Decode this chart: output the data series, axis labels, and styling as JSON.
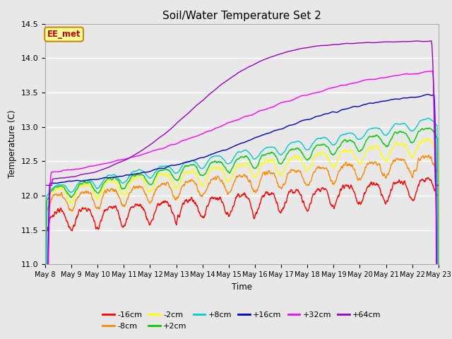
{
  "title": "Soil/Water Temperature Set 2",
  "xlabel": "Time",
  "ylabel": "Temperature (C)",
  "ylim": [
    11.0,
    14.5
  ],
  "n_days": 15,
  "x_tick_labels": [
    "May 8",
    "May 9",
    "May 10",
    "May 11",
    "May 12",
    "May 13",
    "May 14",
    "May 15",
    "May 16",
    "May 17",
    "May 18",
    "May 19",
    "May 20",
    "May 21",
    "May 22",
    "May 23"
  ],
  "yticks": [
    11.0,
    11.5,
    12.0,
    12.5,
    13.0,
    13.5,
    14.0,
    14.5
  ],
  "series": [
    {
      "label": "-16cm",
      "color": "#ff0000"
    },
    {
      "label": "-8cm",
      "color": "#ff8800"
    },
    {
      "label": "-2cm",
      "color": "#ffff00"
    },
    {
      "label": "+2cm",
      "color": "#00cc00"
    },
    {
      "label": "+8cm",
      "color": "#00cccc"
    },
    {
      "label": "+16cm",
      "color": "#0000cc"
    },
    {
      "label": "+32cm",
      "color": "#ff00ff"
    },
    {
      "label": "+64cm",
      "color": "#9900cc"
    }
  ],
  "background_color": "#e8e8e8",
  "plot_bg_color": "#e8e8e8",
  "grid_color": "#ffffff",
  "annotation_text": "EE_met",
  "annotation_color": "#cc0000",
  "annotation_bg": "#ffff99",
  "annotation_border": "#cc8800",
  "figsize": [
    6.4,
    4.8
  ],
  "dpi": 100
}
